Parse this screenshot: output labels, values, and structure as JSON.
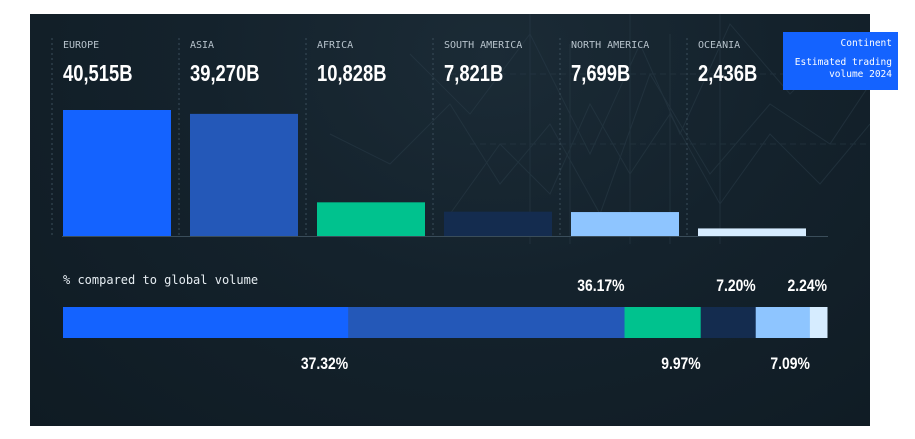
{
  "chart_data": {
    "type": "bar",
    "categories": [
      "EUROPE",
      "ASIA",
      "AFRICA",
      "SOUTH AMERICA",
      "NORTH AMERICA",
      "OCEANIA"
    ],
    "value_labels": [
      "40,515B",
      "39,270B",
      "10,828B",
      "7,821B",
      "7,699B",
      "2,436B"
    ],
    "values": [
      40515,
      39270,
      10828,
      7821,
      7699,
      2436
    ],
    "colors": [
      "#1463ff",
      "#2458b8",
      "#00c28e",
      "#142c4f",
      "#8ec5ff",
      "#d6ecff"
    ],
    "legend": {
      "title": "Continent",
      "subtitle": "Estimated trading volume 2024"
    },
    "share": {
      "title": "% compared to global volume",
      "values": [
        37.32,
        36.17,
        9.97,
        7.2,
        7.09,
        2.24
      ],
      "labels": [
        "37.32%",
        "36.17%",
        "9.97%",
        "7.20%",
        "7.09%",
        "2.24%"
      ]
    }
  }
}
